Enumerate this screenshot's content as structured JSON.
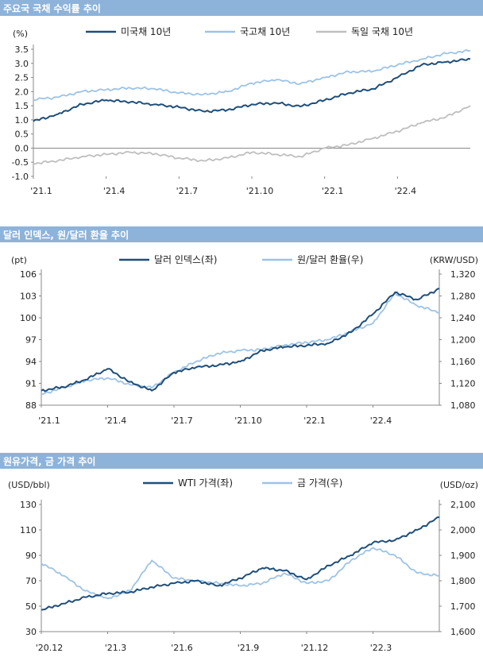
{
  "colors": {
    "band": "#8db3da",
    "dark": "#1f4e79",
    "light": "#9dc3e6",
    "gray": "#bfbfbf"
  },
  "chart_data": [
    {
      "type": "line",
      "title": "주요국 국채 수익률 추이",
      "ylabel": "(%)",
      "ylim": [
        -1.0,
        3.5
      ],
      "yticks": [
        "3.5",
        "3.0",
        "2.5",
        "2.0",
        "1.5",
        "1.0",
        "0.5",
        "0.0",
        "-0.5",
        "-1.0"
      ],
      "xticks": [
        "'21.1",
        "'21.4",
        "'21.7",
        "'21.10",
        "'22.1",
        "'22.4"
      ],
      "x_months": [
        "2021-01",
        "2021-02",
        "2021-03",
        "2021-04",
        "2021-05",
        "2021-06",
        "2021-07",
        "2021-08",
        "2021-09",
        "2021-10",
        "2021-11",
        "2021-12",
        "2022-01",
        "2022-02",
        "2022-03",
        "2022-04",
        "2022-05",
        "2022-06",
        "2022-07"
      ],
      "legend_position": "top",
      "series": [
        {
          "name": "미국채 10년",
          "axis": "left",
          "values": [
            0.95,
            1.2,
            1.55,
            1.7,
            1.63,
            1.55,
            1.45,
            1.3,
            1.35,
            1.55,
            1.6,
            1.47,
            1.7,
            1.95,
            2.1,
            2.5,
            2.95,
            3.05,
            3.15
          ]
        },
        {
          "name": "국고채 10년",
          "axis": "left",
          "values": [
            1.72,
            1.8,
            2.0,
            2.07,
            2.13,
            2.1,
            1.95,
            1.9,
            2.0,
            2.3,
            2.42,
            2.28,
            2.5,
            2.7,
            2.72,
            2.95,
            3.15,
            3.35,
            3.45
          ]
        },
        {
          "name": "독일 국채 10년",
          "axis": "left",
          "values": [
            -0.55,
            -0.45,
            -0.3,
            -0.22,
            -0.15,
            -0.2,
            -0.35,
            -0.45,
            -0.35,
            -0.15,
            -0.22,
            -0.3,
            0.0,
            0.12,
            0.35,
            0.6,
            0.9,
            1.1,
            1.5
          ]
        }
      ]
    },
    {
      "type": "line",
      "title": "달러 인덱스, 원/달러 환율 추이",
      "ylabel": "(pt)",
      "ylabel_right": "(KRW/USD)",
      "ylim": [
        88,
        106
      ],
      "ylim_right": [
        1080,
        1320
      ],
      "yticks": [
        "106",
        "103",
        "100",
        "97",
        "94",
        "91",
        "88"
      ],
      "yticks_right": [
        "1,320",
        "1,280",
        "1,240",
        "1,200",
        "1,160",
        "1,120",
        "1,080"
      ],
      "xticks": [
        "'21.1",
        "'21.4",
        "'21.7",
        "'21.10",
        "'22.1",
        "'22.4"
      ],
      "x_months": [
        "2021-01",
        "2021-02",
        "2021-03",
        "2021-04",
        "2021-05",
        "2021-06",
        "2021-07",
        "2021-08",
        "2021-09",
        "2021-10",
        "2021-11",
        "2021-12",
        "2022-01",
        "2022-02",
        "2022-03",
        "2022-04",
        "2022-05",
        "2022-06",
        "2022-07"
      ],
      "legend_position": "top",
      "series": [
        {
          "name": "달러 인덱스(좌)",
          "axis": "left",
          "values": [
            90.0,
            90.5,
            91.5,
            93.0,
            91.2,
            90.0,
            92.5,
            93.2,
            93.5,
            94.0,
            95.5,
            96.0,
            96.2,
            96.5,
            98.0,
            100.5,
            103.5,
            102.5,
            104.0
          ]
        },
        {
          "name": "원/달러 환율(우)",
          "axis": "right",
          "values": [
            1100,
            1112,
            1125,
            1130,
            1118,
            1112,
            1140,
            1160,
            1175,
            1180,
            1182,
            1190,
            1195,
            1200,
            1215,
            1230,
            1285,
            1262,
            1250
          ]
        }
      ]
    },
    {
      "type": "line",
      "title": "원유가격, 금 가격 추이",
      "ylabel": "(USD/bbl)",
      "ylabel_right": "(USD/oz)",
      "ylim": [
        30,
        130
      ],
      "ylim_right": [
        1600,
        2100
      ],
      "yticks": [
        "130",
        "110",
        "90",
        "70",
        "50",
        "30"
      ],
      "yticks_right": [
        "2,100",
        "2,000",
        "1,900",
        "1,800",
        "1,700",
        "1,600"
      ],
      "xticks": [
        "'20.12",
        "'21.3",
        "'21.6",
        "'21.9",
        "'21.12",
        "'22.3"
      ],
      "x_months": [
        "2020-12",
        "2021-01",
        "2021-02",
        "2021-03",
        "2021-04",
        "2021-05",
        "2021-06",
        "2021-07",
        "2021-08",
        "2021-09",
        "2021-10",
        "2021-11",
        "2021-12",
        "2022-01",
        "2022-02",
        "2022-03",
        "2022-04",
        "2022-05",
        "2022-06"
      ],
      "legend_position": "top",
      "series": [
        {
          "name": "WTI 가격(좌)",
          "axis": "left",
          "values": [
            47,
            52,
            57,
            60,
            61,
            65,
            68,
            70,
            66,
            72,
            80,
            78,
            71,
            82,
            90,
            100,
            102,
            110,
            120
          ]
        },
        {
          "name": "금 가격(우)",
          "axis": "right",
          "values": [
            1870,
            1820,
            1760,
            1730,
            1760,
            1880,
            1810,
            1800,
            1790,
            1780,
            1790,
            1830,
            1790,
            1800,
            1880,
            1930,
            1900,
            1830,
            1820
          ]
        }
      ]
    }
  ]
}
